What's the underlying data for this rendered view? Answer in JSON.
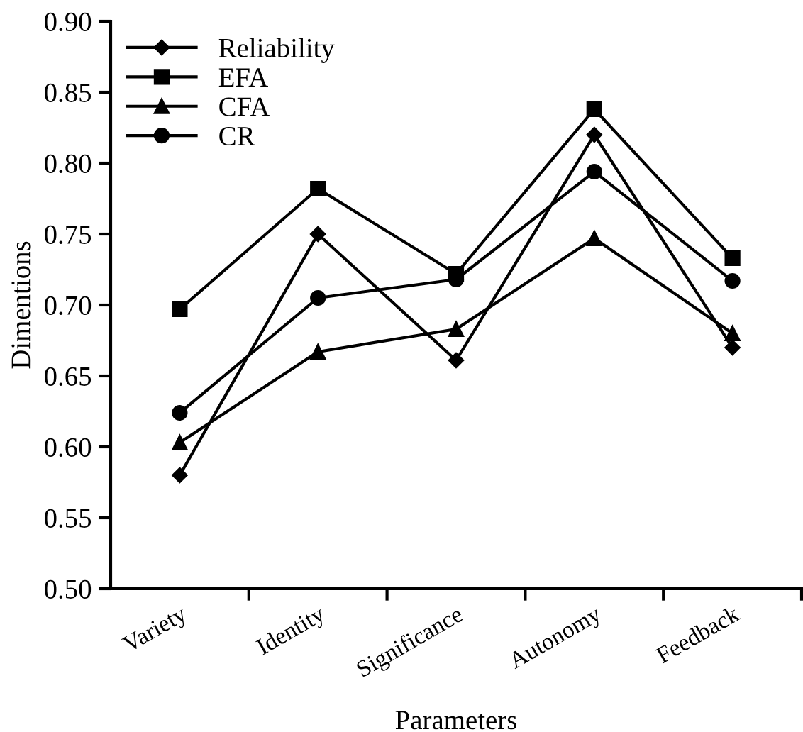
{
  "chart_data": {
    "type": "line",
    "xlabel": "Parameters",
    "ylabel": "Dimentions",
    "categories": [
      "Variety",
      "Identity",
      "Significance",
      "Autonomy",
      "Feedback"
    ],
    "series": [
      {
        "name": "Reliability",
        "color": "#000000",
        "marker": "diamond",
        "values": [
          0.58,
          0.75,
          0.661,
          0.82,
          0.67
        ]
      },
      {
        "name": "EFA",
        "color": "#000000",
        "marker": "square",
        "values": [
          0.697,
          0.782,
          0.722,
          0.838,
          0.733
        ]
      },
      {
        "name": "CFA",
        "color": "#000000",
        "marker": "triangle",
        "values": [
          0.603,
          0.667,
          0.683,
          0.747,
          0.68
        ]
      },
      {
        "name": "CR",
        "color": "#000000",
        "marker": "circle",
        "values": [
          0.624,
          0.705,
          0.718,
          0.794,
          0.717
        ]
      }
    ],
    "ylim": [
      0.5,
      0.9
    ],
    "yticks": [
      {
        "value": 0.5,
        "label": "0.50"
      },
      {
        "value": 0.55,
        "label": "0.55"
      },
      {
        "value": 0.6,
        "label": "0.60"
      },
      {
        "value": 0.65,
        "label": "0.65"
      },
      {
        "value": 0.7,
        "label": "0.70"
      },
      {
        "value": 0.75,
        "label": "0.75"
      },
      {
        "value": 0.8,
        "label": "0.80"
      },
      {
        "value": 0.85,
        "label": "0.85"
      },
      {
        "value": 0.9,
        "label": "0.90"
      }
    ],
    "grid": false,
    "legend": "top left",
    "line_style": "solid"
  }
}
